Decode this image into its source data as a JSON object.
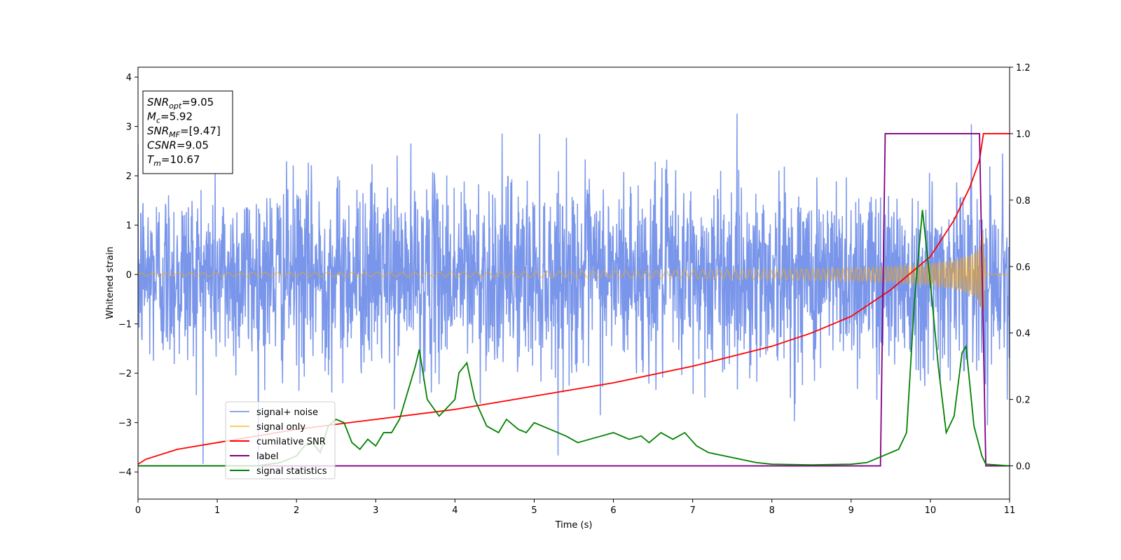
{
  "chart_data": {
    "type": "line",
    "xlabel": "Time (s)",
    "ylabel": "Whitened strain",
    "xlim": [
      0,
      11
    ],
    "ylim_left": [
      -4.55,
      4.2
    ],
    "ylim_right": [
      -0.1,
      1.2
    ],
    "x_ticks": [
      0,
      1,
      2,
      3,
      4,
      5,
      6,
      7,
      8,
      9,
      10,
      11
    ],
    "y_ticks_left": [
      -4,
      -3,
      -2,
      -1,
      0,
      1,
      2,
      3,
      4
    ],
    "y_tick_labels_left": [
      "−4",
      "−3",
      "−2",
      "−1",
      "0",
      "1",
      "2",
      "3",
      "4"
    ],
    "y_ticks_right": [
      0.0,
      0.2,
      0.4,
      0.6,
      0.8,
      1.0,
      1.2
    ],
    "y_tick_labels_right": [
      "0.0",
      "0.2",
      "0.4",
      "0.6",
      "0.8",
      "1.0",
      "1.2"
    ],
    "grid": false,
    "legend_position": "lower-left",
    "series": [
      {
        "name": "signal+ noise",
        "axis": "left",
        "color": "#4169e1",
        "description_values": {
          "baseline_band": [
            -1.9,
            2.3
          ],
          "max_spike": 3.8,
          "min_spike": -4.15
        }
      },
      {
        "name": "signal only",
        "axis": "left",
        "color": "#ffa500",
        "x": [
          0,
          2,
          4,
          6,
          8,
          9,
          9.5,
          10,
          10.3,
          10.5,
          10.6,
          10.67,
          10.7,
          11
        ],
        "envelope": [
          0.03,
          0.04,
          0.05,
          0.07,
          0.1,
          0.13,
          0.16,
          0.22,
          0.3,
          0.4,
          0.5,
          0.9,
          0.0,
          0.0
        ]
      },
      {
        "name": "cumilative SNR",
        "axis": "right",
        "color": "#ff0000",
        "x": [
          0,
          0.1,
          0.5,
          1,
          2,
          3,
          4,
          5,
          6,
          7,
          8,
          8.5,
          9,
          9.5,
          10,
          10.3,
          10.5,
          10.62,
          10.67,
          10.7,
          11
        ],
        "values": [
          0.005,
          0.02,
          0.05,
          0.07,
          0.11,
          0.14,
          0.17,
          0.21,
          0.25,
          0.3,
          0.36,
          0.4,
          0.45,
          0.53,
          0.63,
          0.74,
          0.84,
          0.92,
          1.0,
          1.0,
          1.0
        ]
      },
      {
        "name": "label",
        "axis": "right",
        "color": "#800080",
        "x": [
          0,
          9.37,
          9.43,
          10.62,
          10.7,
          11
        ],
        "values": [
          0,
          0,
          1,
          1,
          0,
          0
        ]
      },
      {
        "name": "signal statistics",
        "axis": "right",
        "color": "#008000",
        "x": [
          0,
          1,
          1.5,
          1.8,
          2.0,
          2.1,
          2.2,
          2.3,
          2.4,
          2.5,
          2.6,
          2.7,
          2.8,
          2.9,
          3.0,
          3.1,
          3.2,
          3.3,
          3.4,
          3.5,
          3.55,
          3.65,
          3.8,
          4.0,
          4.05,
          4.15,
          4.25,
          4.4,
          4.55,
          4.65,
          4.8,
          4.9,
          5.0,
          5.2,
          5.4,
          5.55,
          5.7,
          5.85,
          6.0,
          6.2,
          6.35,
          6.45,
          6.6,
          6.75,
          6.9,
          7.05,
          7.2,
          7.4,
          7.6,
          7.8,
          8.0,
          8.5,
          9.0,
          9.2,
          9.4,
          9.6,
          9.7,
          9.8,
          9.9,
          10.0,
          10.1,
          10.2,
          10.3,
          10.4,
          10.45,
          10.55,
          10.65,
          10.7,
          11
        ],
        "values": [
          0,
          0,
          0.0,
          0.01,
          0.03,
          0.06,
          0.07,
          0.04,
          0.12,
          0.14,
          0.13,
          0.07,
          0.05,
          0.08,
          0.06,
          0.1,
          0.1,
          0.14,
          0.22,
          0.3,
          0.35,
          0.2,
          0.15,
          0.2,
          0.28,
          0.31,
          0.2,
          0.12,
          0.1,
          0.14,
          0.11,
          0.1,
          0.13,
          0.11,
          0.09,
          0.07,
          0.08,
          0.09,
          0.1,
          0.08,
          0.09,
          0.07,
          0.1,
          0.08,
          0.1,
          0.06,
          0.04,
          0.03,
          0.02,
          0.01,
          0.005,
          0.003,
          0.005,
          0.01,
          0.03,
          0.05,
          0.1,
          0.5,
          0.77,
          0.55,
          0.3,
          0.1,
          0.15,
          0.34,
          0.36,
          0.12,
          0.03,
          0.005,
          0.0
        ]
      }
    ]
  },
  "annotation": {
    "lines": [
      {
        "var": "SNR",
        "sub": "opt",
        "value": "=9.05"
      },
      {
        "var": "M",
        "sub": "c",
        "value": "=5.92"
      },
      {
        "var": "SNR",
        "sub": "MF",
        "value": "=[9.47]"
      },
      {
        "var": "CSNR",
        "sub": "",
        "value": "=9.05"
      },
      {
        "var": "T",
        "sub": "m",
        "value": "=10.67"
      }
    ]
  }
}
